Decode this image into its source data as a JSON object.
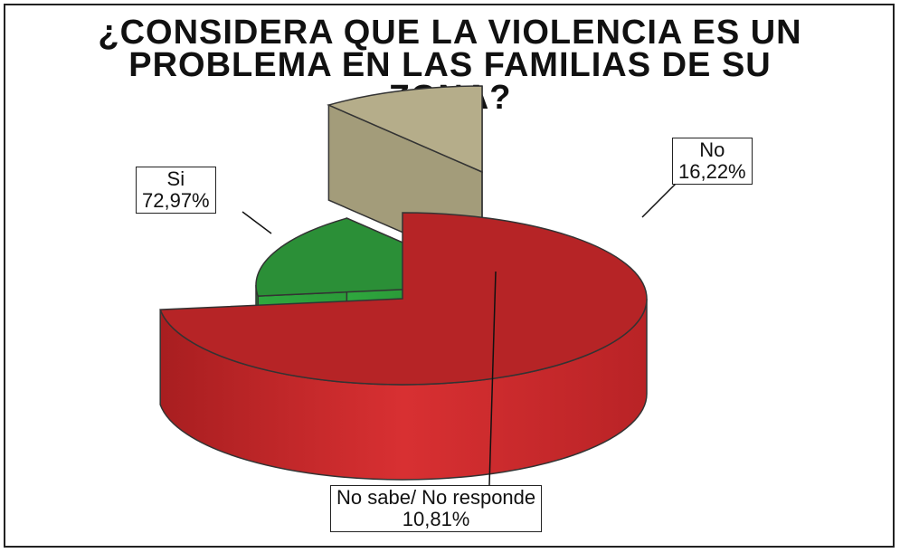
{
  "chart_data": {
    "type": "pie",
    "title": "¿CONSIDERA QUE LA VIOLENCIA ES UN PROBLEMA EN LAS FAMILIAS DE SU ZONA?",
    "title_lines": [
      "¿CONSIDERA QUE LA VIOLENCIA ES UN",
      "PROBLEMA EN LAS FAMILIAS DE SU",
      "ZONA?"
    ],
    "slices": [
      {
        "category": "Si",
        "value": 72.97,
        "label": "72,97%",
        "color": "#c8282a"
      },
      {
        "category": "No",
        "value": 16.22,
        "label": "16,22%",
        "color": "#2e9a3b"
      },
      {
        "category": "No sabe/ No responde",
        "value": 10.81,
        "label": "10,81%",
        "color": "#b5ad8a"
      }
    ],
    "style": "3d-exploded",
    "labels_shown": "category and percentage in boxed callouts"
  }
}
